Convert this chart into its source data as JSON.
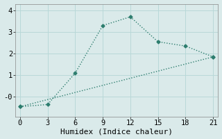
{
  "line1_x": [
    0,
    3,
    6,
    9,
    12,
    15,
    18,
    21
  ],
  "line1_y": [
    -0.45,
    -0.35,
    1.1,
    3.3,
    3.7,
    2.55,
    2.35,
    1.85
  ],
  "line2_x": [
    0,
    21
  ],
  "line2_y": [
    -0.45,
    1.85
  ],
  "color": "#2d7d6e",
  "bg_color": "#daeaea",
  "grid_color": "#b8d8d8",
  "xlabel": "Humidex (Indice chaleur)",
  "xlim": [
    -0.5,
    21.5
  ],
  "ylim": [
    -0.9,
    4.3
  ],
  "xticks": [
    0,
    3,
    6,
    9,
    12,
    15,
    18,
    21
  ],
  "yticks": [
    0,
    1,
    2,
    3,
    4
  ],
  "ytick_labels": [
    "-0",
    "1",
    "2",
    "3",
    "4"
  ],
  "marker": "D",
  "markersize": 2.5,
  "linewidth": 1.0,
  "xlabel_fontsize": 8,
  "tick_fontsize": 7.5
}
